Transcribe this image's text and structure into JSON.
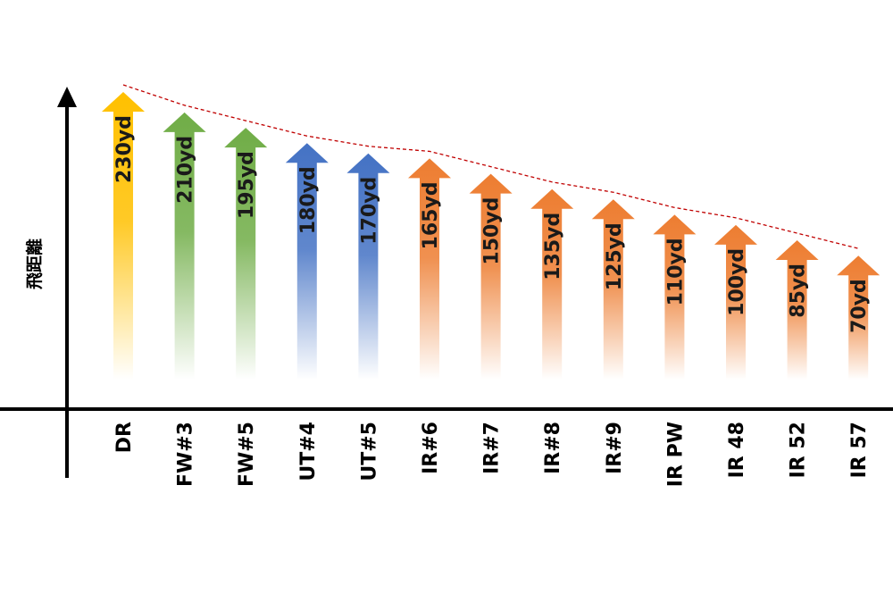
{
  "chart_data": {
    "type": "bar",
    "ylabel": "飛距離",
    "xlabel": "",
    "categories": [
      "DR",
      "FW#3",
      "FW#5",
      "UT#4",
      "UT#5",
      "IR#6",
      "IR#7",
      "IR#8",
      "IR#9",
      "IR PW",
      "IR 48",
      "IR 52",
      "IR 57"
    ],
    "values": [
      230,
      210,
      195,
      180,
      170,
      165,
      150,
      135,
      125,
      110,
      100,
      85,
      70
    ],
    "value_labels": [
      "230yd",
      "210yd",
      "195yd",
      "180yd",
      "170yd",
      "165yd",
      "150yd",
      "135yd",
      "125yd",
      "110yd",
      "100yd",
      "85yd",
      "70yd"
    ],
    "bar_colors": [
      "#FFC000",
      "#70AD47",
      "#70AD47",
      "#4472C4",
      "#4472C4",
      "#ED7D31",
      "#ED7D31",
      "#ED7D31",
      "#ED7D31",
      "#ED7D31",
      "#ED7D31",
      "#ED7D31",
      "#ED7D31"
    ],
    "trend_line": {
      "style": "dashed",
      "color": "#C00000"
    },
    "bar_shape": "arrow",
    "grid": false,
    "legend": "none"
  }
}
